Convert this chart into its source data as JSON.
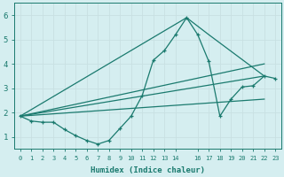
{
  "xlabel": "Humidex (Indice chaleur)",
  "bg_color": "#d5eef0",
  "grid_color": "#c8e0e2",
  "line_color": "#1a7a6e",
  "xlim": [
    -0.5,
    23.5
  ],
  "ylim": [
    0.5,
    6.5
  ],
  "yticks": [
    1,
    2,
    3,
    4,
    5,
    6
  ],
  "xticks": [
    0,
    1,
    2,
    3,
    4,
    5,
    6,
    7,
    8,
    9,
    10,
    11,
    12,
    13,
    14,
    16,
    17,
    18,
    19,
    20,
    21,
    22,
    23
  ],
  "xtick_labels": [
    "0",
    "1",
    "2",
    "3",
    "4",
    "5",
    "6",
    "7",
    "8",
    "9",
    "10",
    "11",
    "12",
    "13",
    "14",
    "16",
    "17",
    "18",
    "19",
    "20",
    "21",
    "22",
    "23"
  ],
  "main_line": {
    "x": [
      0,
      1,
      2,
      3,
      4,
      5,
      6,
      7,
      8,
      9,
      10,
      11,
      12,
      13,
      14,
      15,
      16,
      17,
      18,
      19,
      20,
      21,
      22,
      23
    ],
    "y": [
      1.85,
      1.65,
      1.6,
      1.6,
      1.3,
      1.05,
      0.85,
      0.7,
      0.85,
      1.35,
      1.85,
      2.7,
      4.15,
      4.55,
      5.2,
      5.9,
      5.2,
      4.1,
      1.85,
      2.55,
      3.05,
      3.1,
      3.5,
      3.4
    ]
  },
  "line_peak_triangle": {
    "x": [
      0,
      15,
      17,
      22
    ],
    "y": [
      1.85,
      5.9,
      5.2,
      3.5
    ]
  },
  "line_diagonal1": {
    "x": [
      0,
      22
    ],
    "y": [
      1.85,
      4.0
    ]
  },
  "line_diagonal2": {
    "x": [
      0,
      22
    ],
    "y": [
      1.85,
      3.5
    ]
  },
  "line_diagonal3": {
    "x": [
      0,
      22
    ],
    "y": [
      1.85,
      2.55
    ]
  }
}
